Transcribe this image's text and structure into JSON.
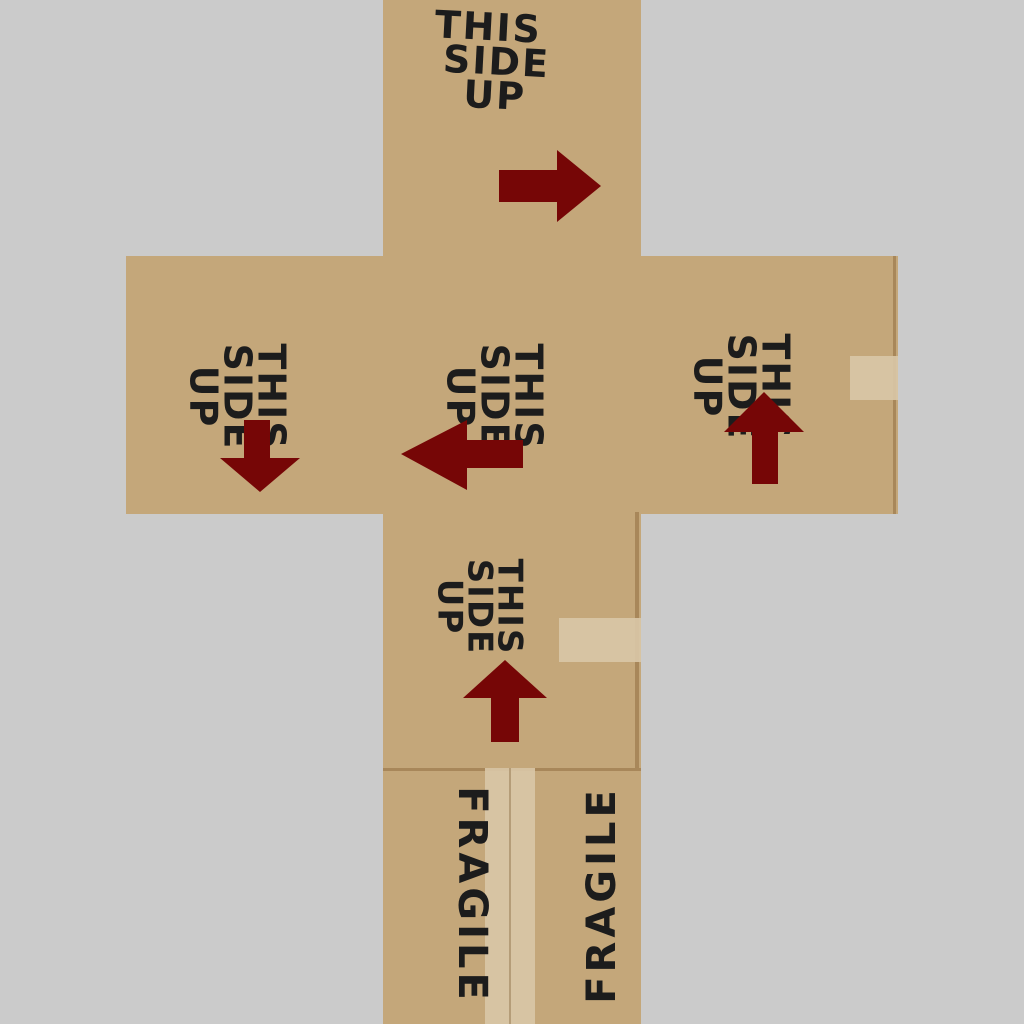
{
  "faces": {
    "top": {
      "line1": "THIS",
      "line2": "SIDE",
      "line3": "UP",
      "arrow": "arrow-right"
    },
    "left": {
      "line1": "THIS",
      "line2": "SIDE",
      "line3": "UP",
      "arrow": "arrow-down"
    },
    "center": {
      "line1": "THIS",
      "line2": "SIDE",
      "line3": "UP",
      "arrow": "arrow-left"
    },
    "right": {
      "line1": "THIS",
      "line2": "SIDE",
      "line3": "UP",
      "arrow": "arrow-up"
    },
    "front": {
      "line1": "THIS",
      "line2": "SIDE",
      "line3": "UP",
      "arrow": "arrow-up"
    },
    "bottom": {
      "label_a": "FRAGILE",
      "label_b": "FRAGILE"
    }
  },
  "colors": {
    "background": "#cbcbcb",
    "cardboard": "#c4a77a",
    "arrow": "#760606",
    "text": "#1c1c1c",
    "tape": "#d9c8a7"
  }
}
